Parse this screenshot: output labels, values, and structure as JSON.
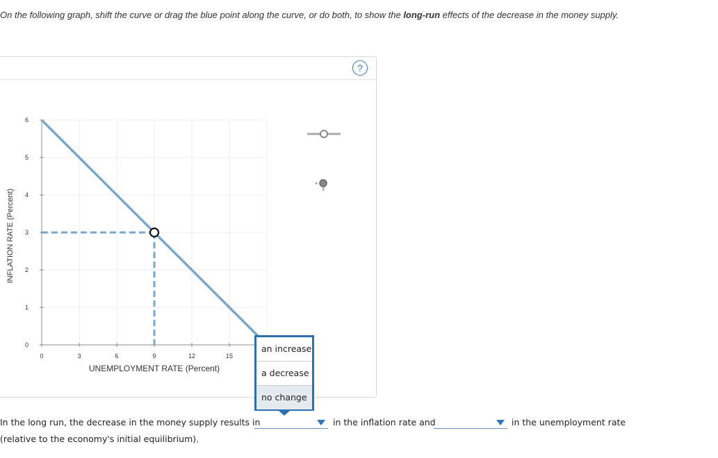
{
  "instructions": {
    "prefix": "On the following graph, shift the curve or drag the blue point along the curve, or do both, to show the ",
    "bold": "long-run",
    "suffix": " effects of the decrease in the money supply."
  },
  "toolbar": {
    "help_label": "?"
  },
  "chart_data": {
    "type": "line",
    "xlabel": "UNEMPLOYMENT RATE (Percent)",
    "ylabel": "INFLATION RATE (Percent)",
    "xlim": [
      0,
      18
    ],
    "ylim": [
      0,
      6
    ],
    "x_ticks": [
      "0",
      "3",
      "6",
      "9",
      "12",
      "15"
    ],
    "y_ticks": [
      "0",
      "1",
      "2",
      "3",
      "4",
      "5",
      "6"
    ],
    "grid": true,
    "series": [
      {
        "points": [
          [
            0,
            6
          ],
          [
            18,
            0
          ]
        ],
        "color": "#7aa6c8"
      }
    ],
    "point": {
      "x": 9,
      "y": 3
    }
  },
  "palette_tools": [
    {
      "icon": "curve-tool-icon"
    },
    {
      "icon": "point-tool-icon"
    }
  ],
  "dropdown": {
    "options": [
      "an increase",
      "a decrease",
      "no change"
    ]
  },
  "question": {
    "part1": "In the long run, the decrease in the money supply results in",
    "part2": "in the inflation rate and",
    "part3": "in the unemployment rate",
    "part4": "(relative to the economy's initial equilibrium)."
  }
}
